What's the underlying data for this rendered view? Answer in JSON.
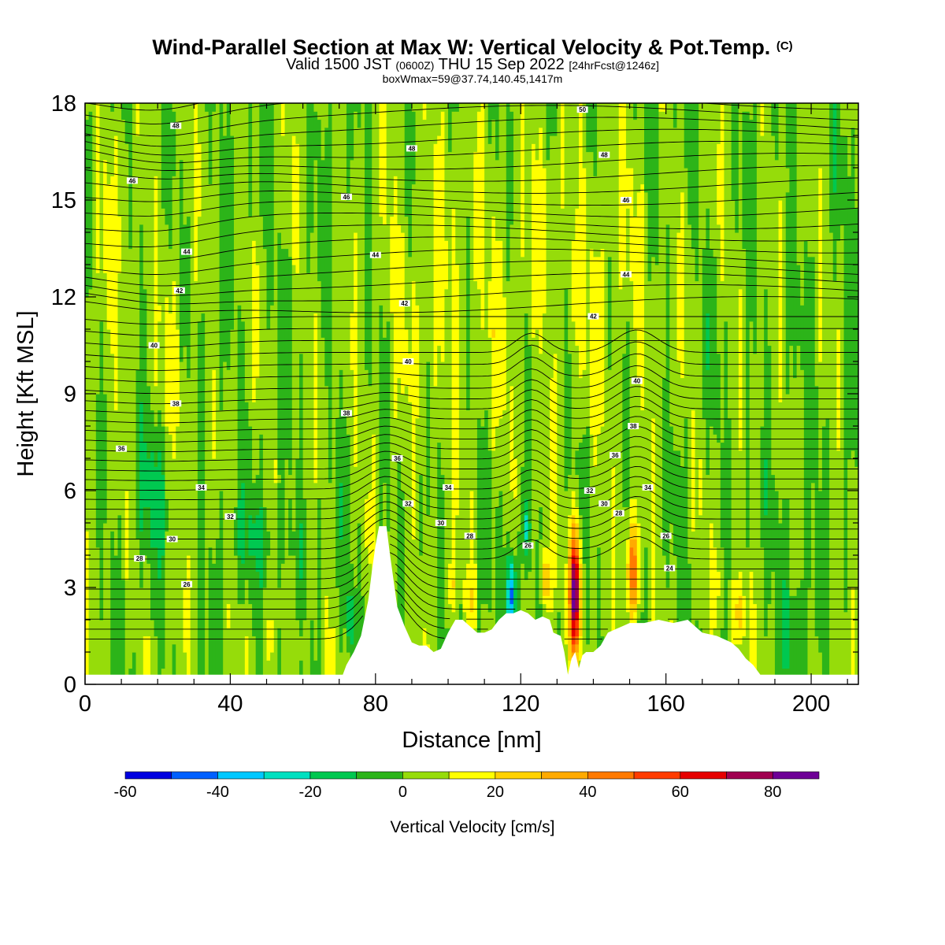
{
  "header": {
    "title": "Wind-Parallel Section at Max W: Vertical Velocity & Pot.Temp.",
    "title_suffix": "(C)",
    "subtitle_prefix": "Valid 1500 JST",
    "subtitle_zulu": "(0600Z)",
    "subtitle_date": "THU 15 Sep 2022",
    "subtitle_fcst": "[24hrFcst@1246z]",
    "subtitle2": "boxWmax=59@37.74,140.45,1417m"
  },
  "chart_data": {
    "type": "heatmap",
    "xlabel": "Distance [nm]",
    "ylabel": "Height [Kft MSL]",
    "xlim": [
      0,
      213
    ],
    "ylim": [
      0,
      18
    ],
    "x_ticks": [
      "0",
      "40",
      "80",
      "120",
      "160",
      "200"
    ],
    "y_ticks": [
      "0",
      "3",
      "6",
      "9",
      "12",
      "15",
      "18"
    ],
    "grid": false,
    "legend": "bottom",
    "colorbar": {
      "label": "Vertical Velocity [cm/s]",
      "tick_labels": [
        "-60",
        "-40",
        "-20",
        "0",
        "20",
        "40",
        "60",
        "80"
      ],
      "bounds": [
        -60,
        -50,
        -40,
        -30,
        -20,
        -10,
        0,
        10,
        20,
        30,
        40,
        50,
        60,
        70,
        80,
        90
      ],
      "colors": [
        "#0000e0",
        "#0060ff",
        "#00c8ff",
        "#00e0c0",
        "#00c850",
        "#2cb419",
        "#96dc0a",
        "#ffff00",
        "#ffd200",
        "#ffaa00",
        "#ff7a00",
        "#ff3c00",
        "#e60000",
        "#a00050",
        "#6e0096"
      ]
    },
    "theta_labels": [
      {
        "x": 25,
        "y": 17.3,
        "text": "48"
      },
      {
        "x": 13,
        "y": 15.6,
        "text": "46"
      },
      {
        "x": 28,
        "y": 13.4,
        "text": "44"
      },
      {
        "x": 26,
        "y": 12.2,
        "text": "42"
      },
      {
        "x": 19,
        "y": 10.5,
        "text": "40"
      },
      {
        "x": 25,
        "y": 8.7,
        "text": "38"
      },
      {
        "x": 10,
        "y": 7.3,
        "text": "36"
      },
      {
        "x": 32,
        "y": 6.1,
        "text": "34"
      },
      {
        "x": 40,
        "y": 5.2,
        "text": "32"
      },
      {
        "x": 24,
        "y": 4.5,
        "text": "30"
      },
      {
        "x": 15,
        "y": 3.9,
        "text": "28"
      },
      {
        "x": 28,
        "y": 3.1,
        "text": "26"
      },
      {
        "x": 72,
        "y": 15.1,
        "text": "46"
      },
      {
        "x": 90,
        "y": 16.6,
        "text": "48"
      },
      {
        "x": 80,
        "y": 13.3,
        "text": "44"
      },
      {
        "x": 88,
        "y": 11.8,
        "text": "42"
      },
      {
        "x": 89,
        "y": 10.0,
        "text": "40"
      },
      {
        "x": 72,
        "y": 8.4,
        "text": "38"
      },
      {
        "x": 86,
        "y": 7.0,
        "text": "36"
      },
      {
        "x": 100,
        "y": 6.1,
        "text": "34"
      },
      {
        "x": 89,
        "y": 5.6,
        "text": "32"
      },
      {
        "x": 98,
        "y": 5.0,
        "text": "30"
      },
      {
        "x": 106,
        "y": 4.6,
        "text": "28"
      },
      {
        "x": 122,
        "y": 4.3,
        "text": "26"
      },
      {
        "x": 137,
        "y": 17.8,
        "text": "50"
      },
      {
        "x": 143,
        "y": 16.4,
        "text": "48"
      },
      {
        "x": 149,
        "y": 15.0,
        "text": "46"
      },
      {
        "x": 149,
        "y": 12.7,
        "text": "44"
      },
      {
        "x": 140,
        "y": 11.4,
        "text": "42"
      },
      {
        "x": 152,
        "y": 9.4,
        "text": "40"
      },
      {
        "x": 151,
        "y": 8.0,
        "text": "38"
      },
      {
        "x": 146,
        "y": 7.1,
        "text": "36"
      },
      {
        "x": 155,
        "y": 6.1,
        "text": "34"
      },
      {
        "x": 139,
        "y": 6.0,
        "text": "32"
      },
      {
        "x": 143,
        "y": 5.6,
        "text": "30"
      },
      {
        "x": 147,
        "y": 5.3,
        "text": "28"
      },
      {
        "x": 160,
        "y": 4.6,
        "text": "26"
      },
      {
        "x": 161,
        "y": 3.6,
        "text": "24"
      }
    ]
  }
}
